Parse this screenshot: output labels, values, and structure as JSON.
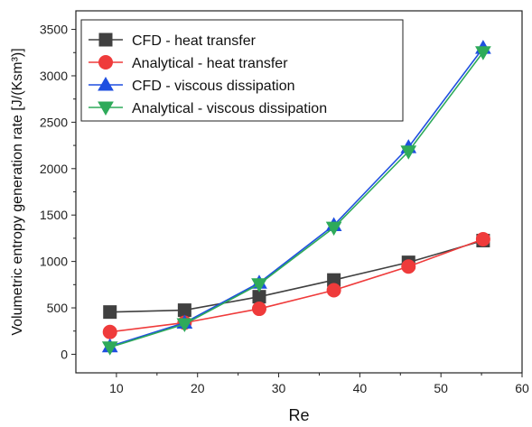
{
  "chart_data": {
    "type": "line",
    "xlabel": "Re",
    "ylabel": "Volumetric entropy generation rate [J/(Ksm³)]",
    "xlim": [
      5,
      60
    ],
    "ylim": [
      -200,
      3700
    ],
    "xticks": [
      10,
      20,
      30,
      40,
      50,
      60
    ],
    "yticks": [
      0,
      500,
      1000,
      1500,
      2000,
      2500,
      3000,
      3500
    ],
    "grid": false,
    "legend_position": "top-left",
    "x": [
      9.2,
      18.4,
      27.6,
      36.8,
      46.0,
      55.2
    ],
    "series": [
      {
        "name": "CFD - heat transfer",
        "color": "#404040",
        "marker": "square",
        "values": [
          455,
          475,
          620,
          800,
          990,
          1225
        ]
      },
      {
        "name": "Analytical - heat transfer",
        "color": "#ef3b3b",
        "marker": "circle",
        "values": [
          240,
          340,
          490,
          690,
          945,
          1240
        ]
      },
      {
        "name": "CFD - viscous dissipation",
        "color": "#1f4fe0",
        "marker": "triangle-up",
        "values": [
          85,
          340,
          770,
          1390,
          2230,
          3300
        ]
      },
      {
        "name": "Analytical - viscous dissipation",
        "color": "#2eaa5a",
        "marker": "triangle-down",
        "values": [
          75,
          325,
          755,
          1365,
          2185,
          3255
        ]
      }
    ]
  }
}
